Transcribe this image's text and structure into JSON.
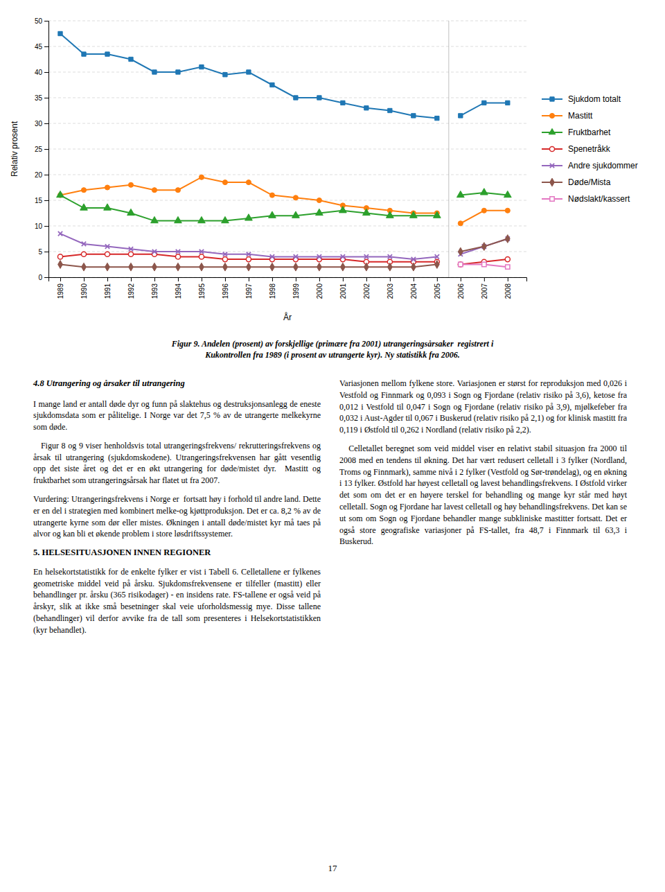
{
  "chart_data": {
    "type": "line",
    "title": "Figur 9. Andelen (prosent) av forskjellige (primære fra 2001) utrangeringsårsaker  registrert i\nKukontrollen fra 1989 (i prosent av utrangerte kyr). Ny statistikk fra 2006.",
    "x_label": "År",
    "y_label": "Relativ prosent",
    "x": [
      1989,
      1990,
      1991,
      1992,
      1993,
      1994,
      1995,
      1996,
      1997,
      1998,
      1999,
      2000,
      2001,
      2002,
      2003,
      2004,
      2005,
      2006,
      2007,
      2008
    ],
    "xlim": [
      1988.5,
      2008.8
    ],
    "xticks": [
      1989,
      1990,
      1991,
      1992,
      1993,
      1994,
      1995,
      1996,
      1997,
      1998,
      1999,
      2000,
      2001,
      2002,
      2003,
      2004,
      2005,
      2006,
      2007,
      2008
    ],
    "ylim": [
      0,
      50
    ],
    "yticks": [
      0,
      5,
      10,
      15,
      20,
      25,
      30,
      35,
      40,
      45,
      50
    ],
    "grid": "y",
    "legend": "right",
    "vlines": [
      2005.5
    ],
    "series": [
      {
        "name": "Sjukdom totalt",
        "marker": "square",
        "values": [
          47.5,
          43.5,
          43.5,
          42.5,
          40.0,
          40.0,
          41.0,
          39.5,
          40.0,
          37.5,
          35.0,
          35.0,
          34.0,
          33.0,
          32.5,
          31.5,
          31.0,
          31.5,
          34.0,
          34.0
        ]
      },
      {
        "name": "Mastitt",
        "marker": "circle",
        "values": [
          16.0,
          17.0,
          17.5,
          18.0,
          17.0,
          17.0,
          19.5,
          18.5,
          18.5,
          16.0,
          15.5,
          15.0,
          14.0,
          13.5,
          13.0,
          12.5,
          12.5,
          10.5,
          13.0,
          13.0
        ]
      },
      {
        "name": "Fruktbarhet",
        "marker": "triangle",
        "values": [
          16.0,
          13.5,
          13.5,
          12.5,
          11.0,
          11.0,
          11.0,
          11.0,
          11.5,
          12.0,
          12.0,
          12.5,
          13.0,
          12.5,
          12.0,
          12.0,
          12.0,
          16.0,
          16.5,
          16.0
        ]
      },
      {
        "name": "Spenetråkk",
        "marker": "circle-open",
        "values": [
          4.0,
          4.5,
          4.5,
          4.5,
          4.5,
          4.0,
          4.0,
          3.5,
          3.5,
          3.5,
          3.5,
          3.5,
          3.5,
          3.0,
          3.0,
          3.0,
          3.0,
          2.5,
          3.0,
          3.5
        ]
      },
      {
        "name": "Andre sjukdommer",
        "marker": "cross",
        "values": [
          8.5,
          6.5,
          6.0,
          5.5,
          5.0,
          5.0,
          5.0,
          4.5,
          4.5,
          4.0,
          4.0,
          4.0,
          4.0,
          4.0,
          4.0,
          3.5,
          4.0,
          4.5,
          6.0,
          7.5
        ]
      },
      {
        "name": "Døde/Mista",
        "marker": "diamond",
        "values": [
          2.5,
          2.0,
          2.0,
          2.0,
          2.0,
          2.0,
          2.0,
          2.0,
          2.0,
          2.0,
          2.0,
          2.0,
          2.0,
          2.0,
          2.0,
          2.0,
          2.5,
          5.0,
          6.0,
          7.5
        ]
      },
      {
        "name": "Nødslakt/kassert",
        "marker": "square-open",
        "values": [
          null,
          null,
          null,
          null,
          null,
          null,
          null,
          null,
          null,
          null,
          null,
          null,
          null,
          null,
          null,
          null,
          null,
          2.5,
          2.5,
          2.0
        ]
      }
    ]
  },
  "body_left": [
    "4.8 Utrangering og årsaker til utrangering",
    "I mange land er antall døde dyr og funn på slaktehus og destruksjonsanlegg de eneste sjukdomsdata som er pålitelige. I Norge var det 7,5 % av de utrangerte melkekyrne som døde.",
    "   Figur 8 og 9 viser henholdsvis total utrangeringsfrekvens/ rekrutteringsfrekvens og årsak til utrangering (sjukdomskodene). Utrangeringsfrekvensen har gått vesentlig opp det siste året og det er en økt utrangering for døde/mistet dyr.  Mastitt og fruktbarhet som utrangeringsårsak har flatet ut fra 2007.",
    "Vurdering: Utrangeringsfrekvens i Norge er  fortsatt høy i forhold til andre land. Dette er en del i strategien med kombinert melke-og kjøttproduksjon. Det er ca. 8,2 % av de utrangerte kyrne som dør eller mistes. Økningen i antall døde/mistet kyr må taes på alvor og kan bli et økende problem i store løsdriftssystemer.",
    "5. HELSESITUASJONEN INNEN REGIONER",
    "En helsekortstatistikk for de enkelte fylker er vist i Tabell 6. Celletallene er fylkenes geometriske middel veid på årsku. Sjukdomsfrekvensene er tilfeller (mastitt) eller behandlinger pr. årsku (365 risikodager) - en insidens rate. FS-tallene er også veid på årskyr, slik at ikke små besetninger skal veie uforholdsmessig mye. Disse tallene (behandlinger) vil derfor avvike fra de tall som presenteres i Helsekortstatistikken (kyr behandlet)."
  ],
  "body_right": [
    "Variasjonen mellom fylkene store. Variasjonen er størst for reproduksjon med 0,026 i Vestfold og Finnmark og 0,093 i Sogn og Fjordane (relativ risiko på 3,6), ketose fra 0,012 i Vestfold til 0,047 i Sogn og Fjordane (relativ risiko på 3,9), mjølkefeber fra 0,032 i Aust-Agder til 0,067 i Buskerud (relativ risiko på 2,1) og for klinisk mastitt fra 0,119 i Østfold til 0,262 i Nordland (relativ risiko på 2,2).",
    "   Celletallet beregnet som veid middel viser en relativt stabil situasjon fra 2000 til 2008 med en tendens til økning. Det har vært redusert celletall i 3 fylker (Nordland, Troms og Finnmark), samme nivå i 2 fylker (Vestfold og Sør-trøndelag), og en økning i 13 fylker. Østfold har høyest celletall og lavest behandlingsfrekvens. I Østfold virker det som om det er en høyere terskel for behandling og mange kyr står med høyt celletall. Sogn og Fjordane har lavest celletall og høy behandlingsfrekvens. Det kan se ut som om Sogn og Fjordane behandler mange subkliniske mastitter fortsatt. Det er også store geografiske variasjoner på FS-tallet, fra 48,7 i Finnmark til 63,3 i Buskerud."
  ],
  "page_number": "17"
}
